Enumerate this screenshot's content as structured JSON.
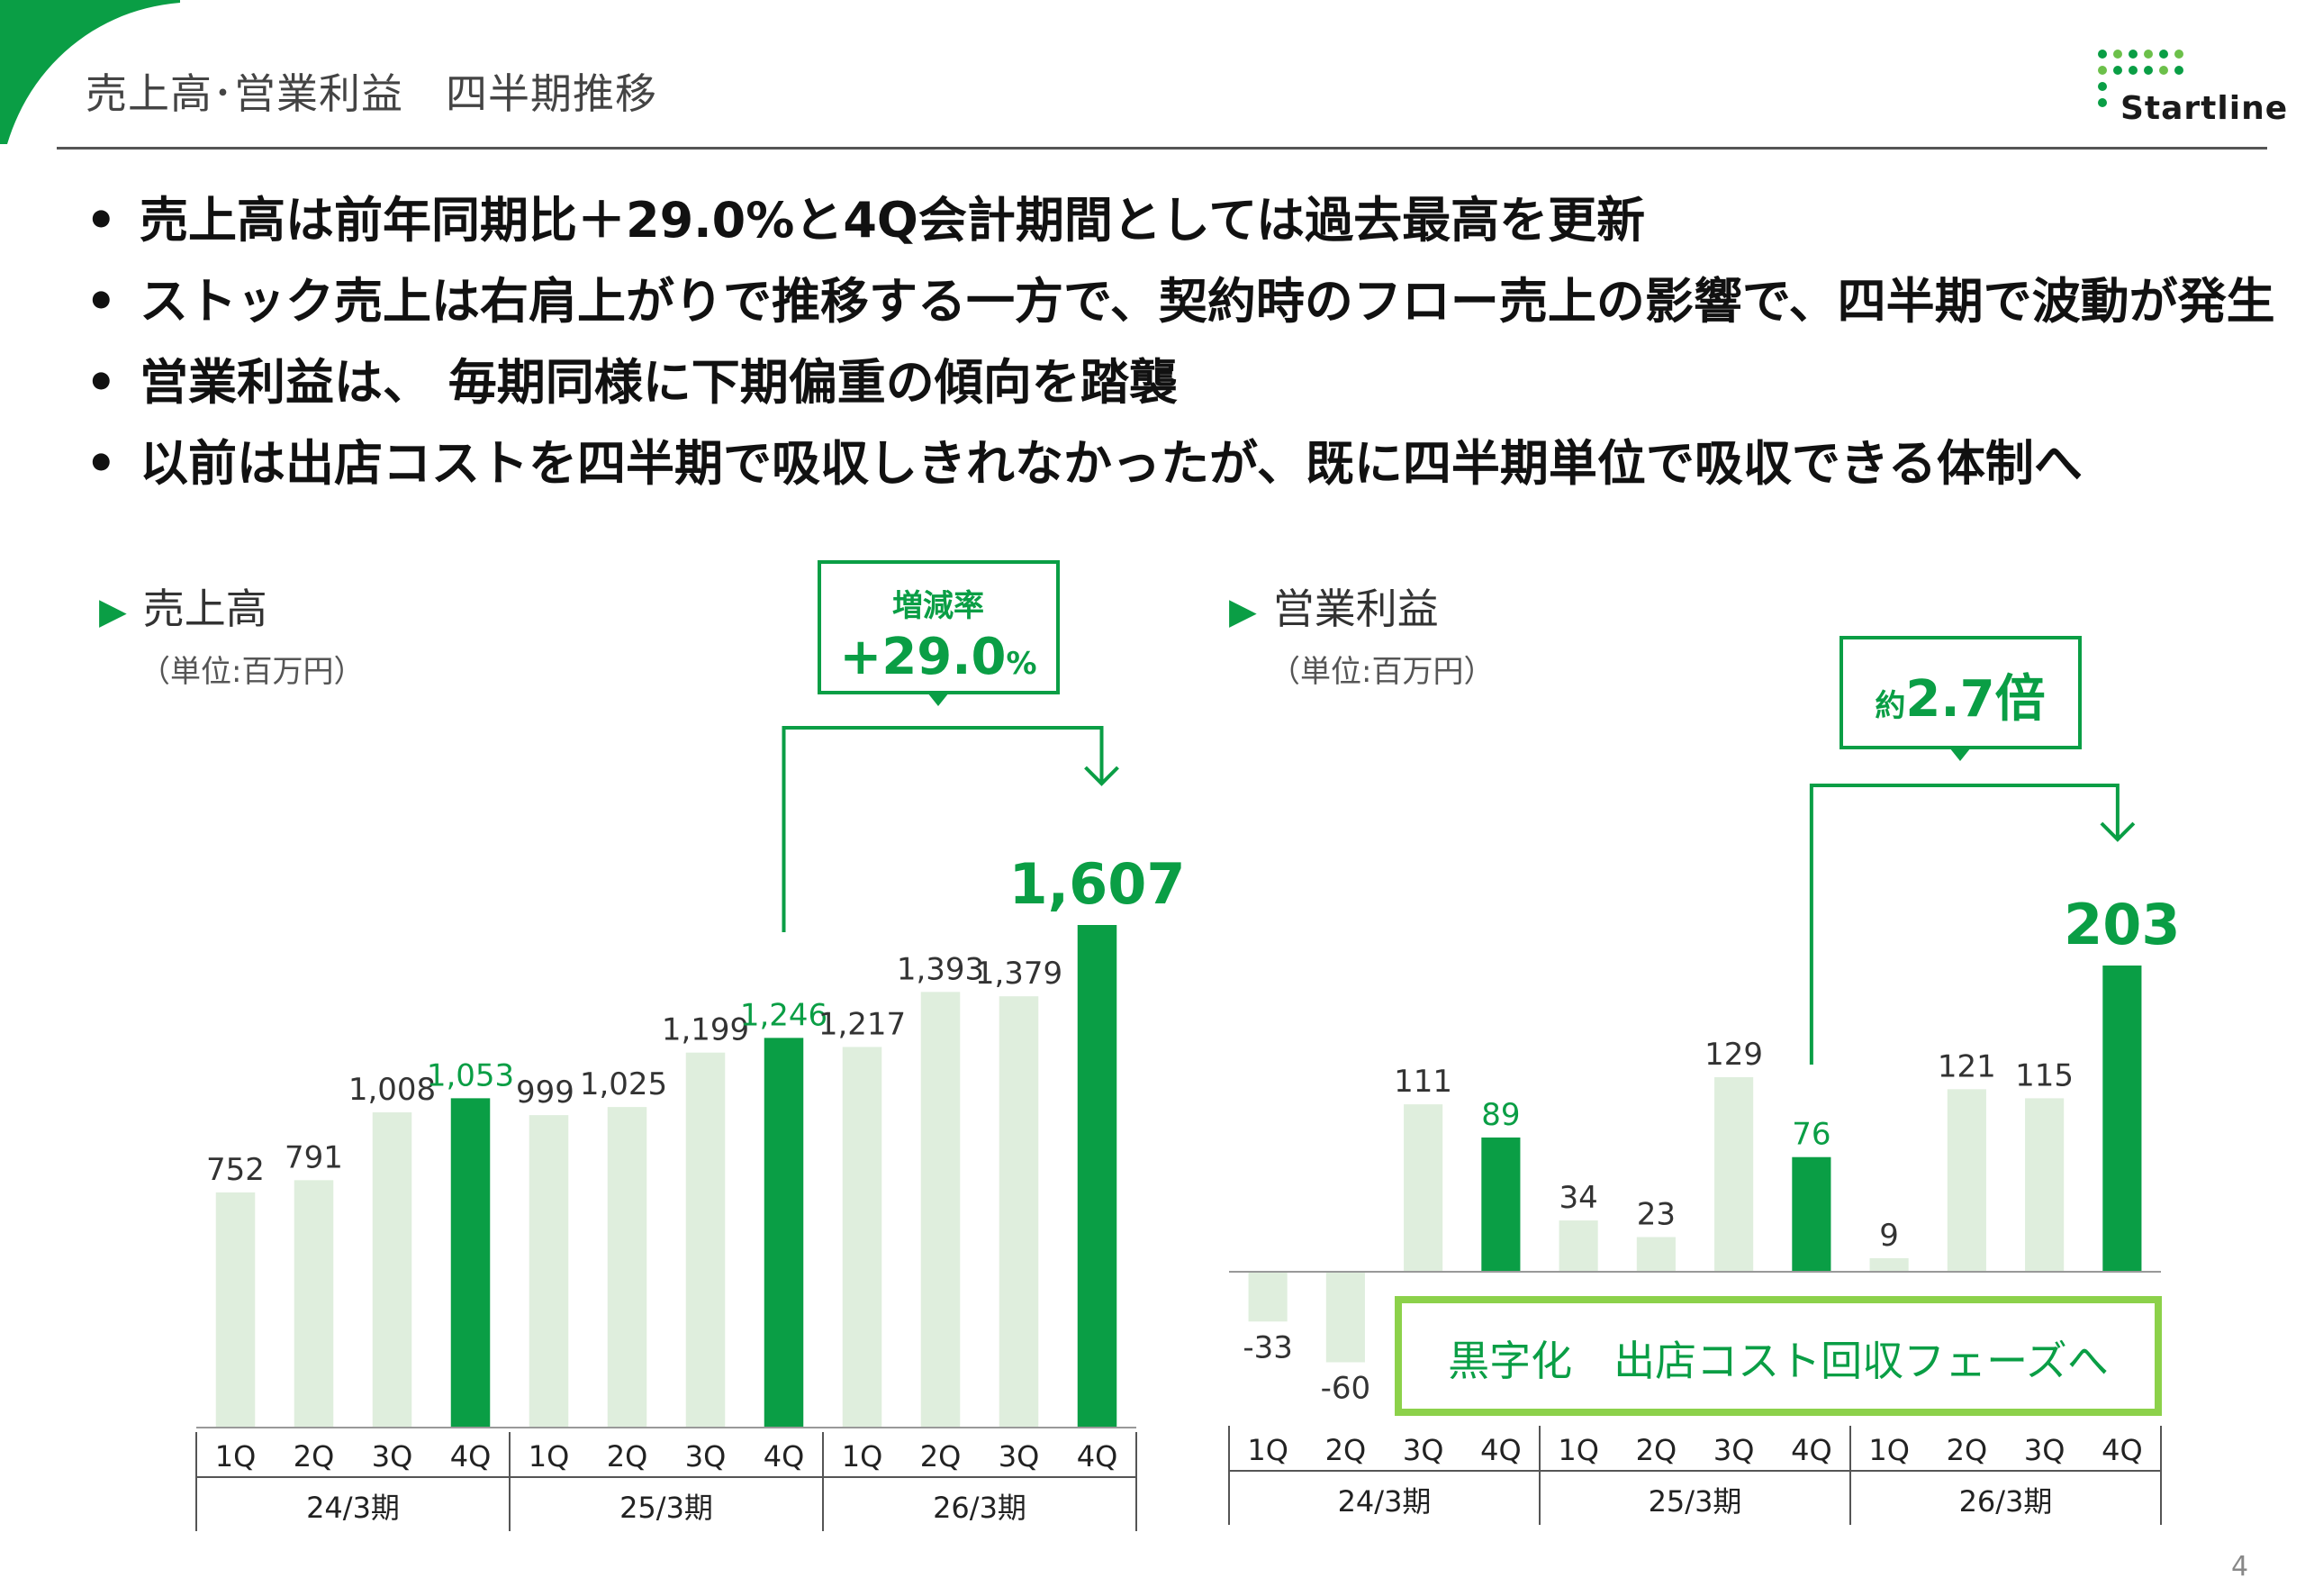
{
  "slide_title": "売上高･営業利益　四半期推移",
  "logo_text": "Startline",
  "bullets": [
    "売上高は前年同期比＋29.0%と4Q会計期間としては過去最高を更新",
    "ストック売上は右肩上がりで推移する一方で、契約時のフロー売上の影響で、四半期で波動が発生",
    "営業利益は、 毎期同様に下期偏重の傾向を踏襲",
    "以前は出店コストを四半期で吸収しきれなかったが、既に四半期単位で吸収できる体制へ"
  ],
  "bullet_marker": "•",
  "colors": {
    "accent": "#0a9e45",
    "light_bar": "#dfeedd",
    "highlight_box": "#8cd14a",
    "axis": "#555555"
  },
  "chart_data": [
    {
      "type": "bar",
      "title": "売上高",
      "unit_label": "（単位:百万円）",
      "categories": [
        "1Q",
        "2Q",
        "3Q",
        "4Q",
        "1Q",
        "2Q",
        "3Q",
        "4Q",
        "1Q",
        "2Q",
        "3Q",
        "4Q"
      ],
      "groups": [
        "24/3期",
        "25/3期",
        "26/3期"
      ],
      "values": [
        752,
        791,
        1008,
        1053,
        999,
        1025,
        1199,
        1246,
        1217,
        1393,
        1379,
        1607
      ],
      "data_labels": [
        "752",
        "791",
        "1,008",
        "1,053",
        "999",
        "1,025",
        "1,199",
        "1,246",
        "1,217",
        "1,393",
        "1,379",
        "1,607"
      ],
      "highlight_indices": [
        3,
        7,
        11
      ],
      "ylim": [
        0,
        1607
      ],
      "annotation": {
        "label": "増減率",
        "value": "+29.0",
        "unit": "%"
      }
    },
    {
      "type": "bar",
      "title": "営業利益",
      "unit_label": "（単位:百万円）",
      "categories": [
        "1Q",
        "2Q",
        "3Q",
        "4Q",
        "1Q",
        "2Q",
        "3Q",
        "4Q",
        "1Q",
        "2Q",
        "3Q",
        "4Q"
      ],
      "groups": [
        "24/3期",
        "25/3期",
        "26/3期"
      ],
      "values": [
        -33,
        -60,
        111,
        89,
        34,
        23,
        129,
        76,
        9,
        121,
        115,
        203
      ],
      "data_labels": [
        "-33",
        "-60",
        "111",
        "89",
        "34",
        "23",
        "129",
        "76",
        "9",
        "121",
        "115",
        "203"
      ],
      "highlight_indices": [
        3,
        7,
        11
      ],
      "ylim": [
        -60,
        203
      ],
      "annotation": {
        "prefix": "約",
        "value": "2.7倍"
      },
      "callout": "黒字化　出店コスト回収フェーズへ"
    }
  ],
  "page_number": "4"
}
